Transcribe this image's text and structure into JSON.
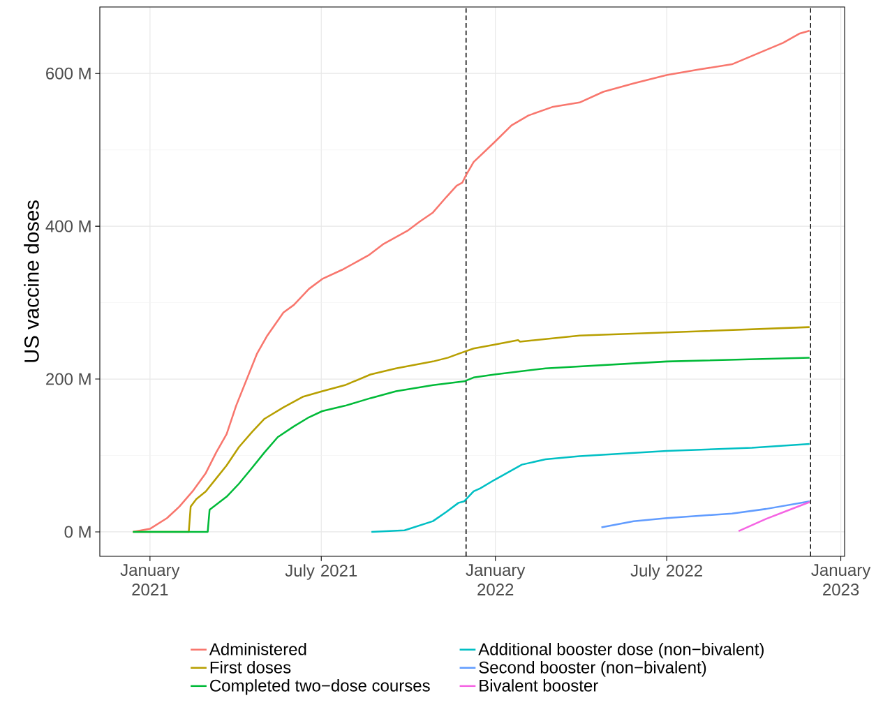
{
  "chart_data": {
    "type": "line",
    "ylabel": "US vaccine doses",
    "xlim": [
      "2020-11-09",
      "2023-01-05"
    ],
    "ylim": [
      -32,
      687
    ],
    "xticks": [
      {
        "value": "2021-01-01",
        "label": "January 2021"
      },
      {
        "value": "2021-07-01",
        "label": "July 2021"
      },
      {
        "value": "2022-01-01",
        "label": "January 2022"
      },
      {
        "value": "2022-07-01",
        "label": "July 2022"
      },
      {
        "value": "2023-01-01",
        "label": "January 2023"
      }
    ],
    "yticks": [
      {
        "value": 0,
        "label": "0 M"
      },
      {
        "value": 200,
        "label": "200 M"
      },
      {
        "value": 400,
        "label": "400 M"
      },
      {
        "value": 600,
        "label": "600 M"
      }
    ],
    "grid": true,
    "legend": "bottom",
    "marker": "none",
    "line_style": "solid",
    "ref_lines": [
      {
        "axis": "x",
        "value": "2021-12-01",
        "color": "#000000",
        "line_style": "dashed"
      },
      {
        "axis": "x",
        "value": "2022-11-30",
        "color": "#000000",
        "line_style": "dashed"
      }
    ],
    "series": [
      {
        "name": "Administered",
        "color": "#F8766D",
        "x": [
          "2020-12-14",
          "2021-01-01",
          "2021-01-19",
          "2021-02-01",
          "2021-02-15",
          "2021-03-01",
          "2021-03-12",
          "2021-03-23",
          "2021-04-02",
          "2021-04-13",
          "2021-04-24",
          "2021-05-05",
          "2021-05-22",
          "2021-06-02",
          "2021-06-18",
          "2021-07-02",
          "2021-07-23",
          "2021-08-20",
          "2021-09-05",
          "2021-09-30",
          "2021-10-13",
          "2021-10-27",
          "2021-11-10",
          "2021-11-21",
          "2021-11-27",
          "2021-12-01",
          "2021-12-09",
          "2021-12-31",
          "2022-01-18",
          "2022-02-05",
          "2022-03-02",
          "2022-03-31",
          "2022-04-25",
          "2022-05-27",
          "2022-07-01",
          "2022-08-03",
          "2022-09-08",
          "2022-10-03",
          "2022-11-01",
          "2022-11-18",
          "2022-11-29"
        ],
        "values": [
          0,
          4,
          18,
          33,
          53,
          77,
          104,
          128,
          165,
          199,
          233,
          257,
          287,
          297,
          318,
          331,
          343,
          362,
          377,
          394,
          406,
          418,
          438,
          453,
          457,
          467,
          484,
          510,
          532,
          545,
          556,
          562,
          576,
          587,
          598,
          605,
          612,
          625,
          640,
          652,
          656
        ]
      },
      {
        "name": "First doses",
        "color": "#B79F00",
        "x": [
          "2020-12-14",
          "2021-02-11",
          "2021-02-13",
          "2021-02-19",
          "2021-03-01",
          "2021-03-12",
          "2021-03-23",
          "2021-04-05",
          "2021-04-19",
          "2021-05-02",
          "2021-05-22",
          "2021-06-12",
          "2021-07-02",
          "2021-07-26",
          "2021-08-22",
          "2021-09-18",
          "2021-10-27",
          "2021-11-12",
          "2021-11-23",
          "2021-12-09",
          "2021-12-31",
          "2022-01-25",
          "2022-01-27",
          "2022-03-31",
          "2022-07-01",
          "2022-11-29"
        ],
        "values": [
          0,
          0,
          33,
          43,
          53,
          70,
          87,
          111,
          131,
          148,
          163,
          177,
          184,
          192,
          206,
          214,
          223,
          228,
          233,
          240,
          245,
          251,
          249,
          257,
          261,
          268
        ]
      },
      {
        "name": "Completed two−dose courses",
        "color": "#00BA38",
        "x": [
          "2020-12-14",
          "2021-03-03",
          "2021-03-05",
          "2021-03-23",
          "2021-04-05",
          "2021-04-19",
          "2021-05-02",
          "2021-05-16",
          "2021-06-02",
          "2021-06-18",
          "2021-07-02",
          "2021-07-26",
          "2021-08-22",
          "2021-09-18",
          "2021-10-27",
          "2021-11-29",
          "2021-12-09",
          "2021-12-31",
          "2022-02-23",
          "2022-07-01",
          "2022-11-29"
        ],
        "values": [
          0,
          0,
          29,
          46,
          63,
          84,
          104,
          124,
          138,
          150,
          158,
          165,
          175,
          184,
          192,
          197,
          202,
          206,
          214,
          223,
          228
        ]
      },
      {
        "name": "Additional booster dose (non−bivalent)",
        "color": "#00BFC4",
        "x": [
          "2021-08-23",
          "2021-09-27",
          "2021-10-27",
          "2021-11-10",
          "2021-11-23",
          "2021-11-29",
          "2021-12-09",
          "2021-12-16",
          "2021-12-31",
          "2022-01-29",
          "2022-02-23",
          "2022-03-31",
          "2022-07-01",
          "2022-09-29",
          "2022-11-29"
        ],
        "values": [
          0,
          2,
          14,
          26,
          38,
          40,
          53,
          57,
          68,
          88,
          95,
          99,
          106,
          110,
          115
        ]
      },
      {
        "name": "Second booster (non−bivalent)",
        "color": "#619CFF",
        "x": [
          "2022-04-23",
          "2022-05-27",
          "2022-07-01",
          "2022-09-08",
          "2022-10-14",
          "2022-11-29"
        ],
        "values": [
          6,
          14,
          18,
          24,
          30,
          40
        ]
      },
      {
        "name": "Bivalent booster",
        "color": "#F564E3",
        "x": [
          "2022-09-15",
          "2022-10-14",
          "2022-11-08",
          "2022-11-29"
        ],
        "values": [
          1,
          17,
          29,
          39
        ]
      }
    ]
  }
}
